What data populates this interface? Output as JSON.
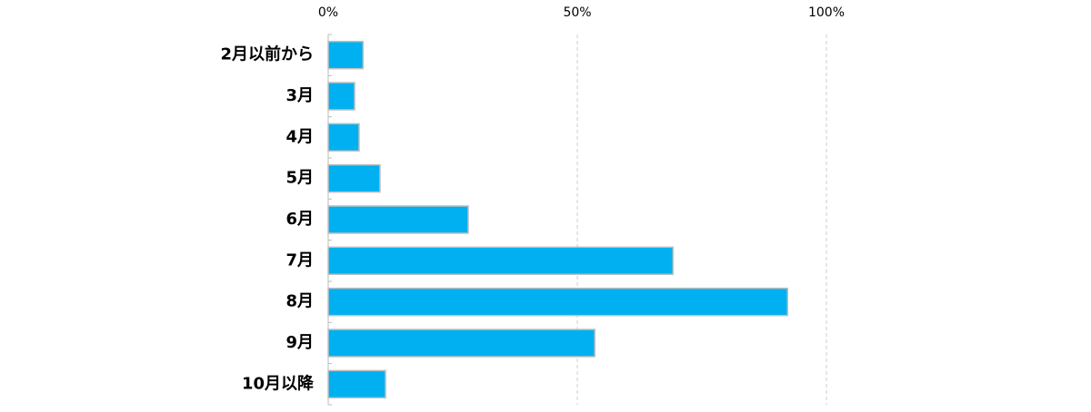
{
  "chart_data": {
    "type": "bar",
    "orientation": "horizontal",
    "categories": [
      "2月以前から",
      "3月",
      "4月",
      "5月",
      "6月",
      "7月",
      "8月",
      "9月",
      "10月以降"
    ],
    "values": [
      7,
      5.3,
      6.2,
      10.4,
      28.1,
      69.2,
      92.2,
      53.5,
      11.5
    ],
    "color": "#00b0f0",
    "xlim": [
      0,
      100
    ],
    "xticks": [
      {
        "value": 0,
        "label": "0%"
      },
      {
        "value": 50,
        "label": "50%"
      },
      {
        "value": 100,
        "label": "100%"
      }
    ],
    "grid": true
  }
}
